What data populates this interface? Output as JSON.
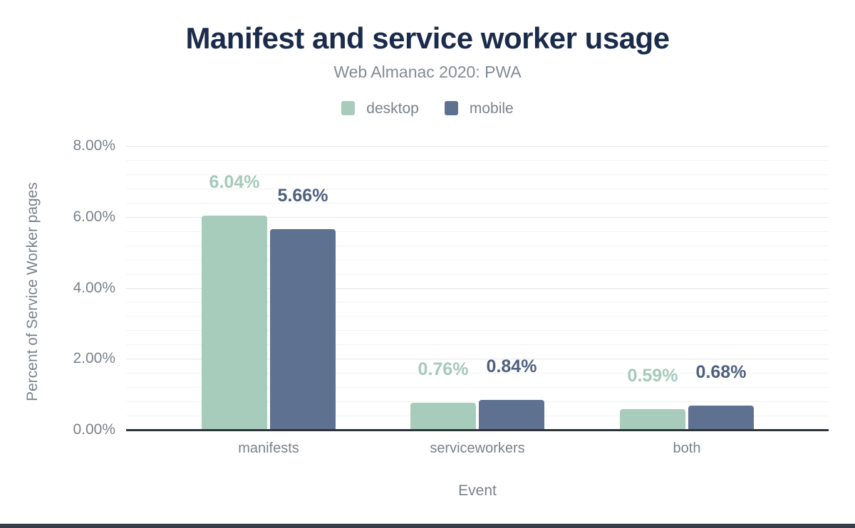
{
  "title": "Manifest and service worker usage",
  "subtitle": "Web Almanac 2020: PWA",
  "legend": {
    "items": [
      {
        "label": "desktop",
        "color": "#a8ccbc"
      },
      {
        "label": "mobile",
        "color": "#5f7190"
      }
    ]
  },
  "colors": {
    "title_navy": "#1b2b4b",
    "subtitle_gray": "#848b93",
    "text_gray": "#7a828a",
    "grid_major": "#e7e7e7",
    "grid_minor": "#f3f3f3",
    "axis_line": "#2e3338",
    "footer_bar": "#363f49",
    "desktop_bar": "#a8ccbc",
    "mobile_bar": "#5f7190",
    "desktop_label": "#a5cabb",
    "mobile_label": "#4e6080"
  },
  "chart_data": {
    "type": "bar",
    "title": "Manifest and service worker usage",
    "subtitle": "Web Almanac 2020: PWA",
    "categories": [
      "manifests",
      "serviceworkers",
      "both"
    ],
    "series": [
      {
        "name": "desktop",
        "color": "#a8ccbc",
        "label_color": "#a5cabb",
        "values": [
          6.04,
          0.76,
          0.59
        ],
        "data_labels": [
          "6.04%",
          "0.76%",
          "0.59%"
        ]
      },
      {
        "name": "mobile",
        "color": "#5f7190",
        "label_color": "#4e6080",
        "values": [
          5.66,
          0.84,
          0.68
        ],
        "data_labels": [
          "5.66%",
          "0.84%",
          "0.68%"
        ]
      }
    ],
    "xlabel": "Event",
    "ylabel": "Percent of Service Worker pages",
    "ylim": [
      0,
      8
    ],
    "y_ticks": [
      {
        "value": 0,
        "label": "0.00%"
      },
      {
        "value": 2,
        "label": "2.00%"
      },
      {
        "value": 4,
        "label": "4.00%"
      },
      {
        "value": 6,
        "label": "6.00%"
      },
      {
        "value": 8,
        "label": "8.00%"
      }
    ],
    "grid": {
      "major_step": 2,
      "minor_step": 0.4,
      "grid_on": true
    },
    "legend_position": "top"
  }
}
